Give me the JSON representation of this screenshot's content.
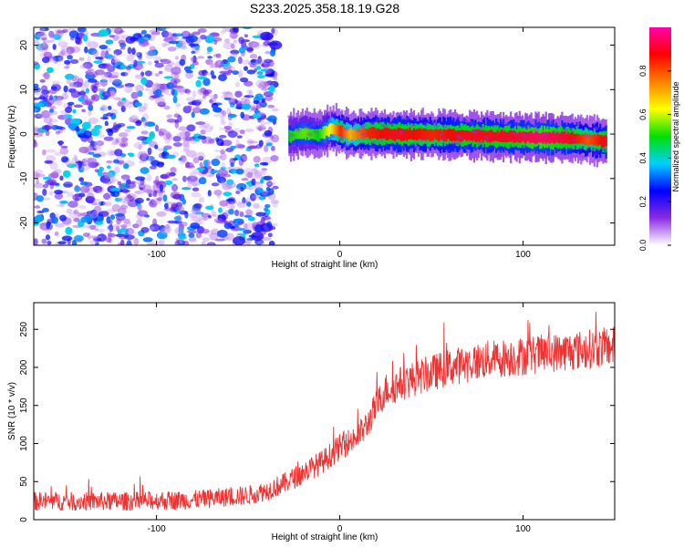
{
  "chart_data": [
    {
      "id": "spectrogram",
      "type": "heatmap",
      "title": "S233.2025.358.18.19.G28",
      "xlabel": "Height of straight line (km)",
      "ylabel": "Frequency (Hz)",
      "xlim": [
        -167,
        150
      ],
      "ylim": [
        -25,
        24
      ],
      "xticks": [
        -100,
        0,
        100
      ],
      "xtick_labels": [
        "-100",
        "0",
        "100"
      ],
      "yticks": [
        20,
        10,
        0,
        -10,
        -20
      ],
      "ytick_labels": [
        "20",
        "10",
        "0",
        "-10",
        "-20"
      ],
      "colorbar": {
        "label": "Normalized spectral amplitude",
        "range": [
          0,
          1
        ],
        "ticks": [
          0.0,
          0.2,
          0.4,
          0.6,
          0.8
        ],
        "tick_labels": [
          "0.0",
          "0.2",
          "0.4",
          "0.6",
          "0.8"
        ],
        "colors": [
          "#ffffff",
          "#8a2be2",
          "#0000ff",
          "#00d0ff",
          "#00e000",
          "#ffff00",
          "#ff8000",
          "#ff0000",
          "#ff00aa"
        ]
      },
      "noise_region_x": [
        -167,
        -35
      ],
      "ridge": {
        "x": [
          -28,
          -20,
          -12,
          -5,
          0,
          5,
          15,
          30,
          50,
          70,
          90,
          110,
          125,
          135,
          145
        ],
        "freq": [
          -0.5,
          0.3,
          -0.2,
          1.2,
          0.6,
          -0.1,
          0.2,
          0.0,
          -0.1,
          -0.3,
          -0.6,
          -0.8,
          -0.9,
          -1.2,
          -1.6
        ],
        "amplitude": [
          0.5,
          0.55,
          0.5,
          0.65,
          0.85,
          0.7,
          0.85,
          0.9,
          0.85,
          0.9,
          0.9,
          0.95,
          0.9,
          0.8,
          0.9
        ]
      }
    },
    {
      "id": "snr",
      "type": "line",
      "xlabel": "Height of straight line (km)",
      "ylabel": "SNR (10 * v/v)",
      "xlim": [
        -167,
        150
      ],
      "ylim": [
        0,
        285
      ],
      "xticks": [
        -100,
        0,
        100
      ],
      "xtick_labels": [
        "-100",
        "0",
        "100"
      ],
      "yticks": [
        0,
        50,
        100,
        150,
        200,
        250
      ],
      "ytick_labels": [
        "0",
        "50",
        "100",
        "150",
        "200",
        "250"
      ],
      "series": [
        {
          "name": "SNR",
          "color": "#ee3333",
          "trend_x": [
            -167,
            -120,
            -80,
            -50,
            -40,
            -30,
            -25,
            -20,
            -10,
            0,
            10,
            15,
            20,
            25,
            40,
            60,
            80,
            100,
            120,
            140,
            150
          ],
          "trend_y": [
            24,
            24,
            26,
            32,
            38,
            48,
            55,
            62,
            75,
            95,
            110,
            125,
            150,
            170,
            185,
            200,
            210,
            215,
            220,
            225,
            228
          ],
          "noise_amplitude": 18
        }
      ]
    }
  ]
}
